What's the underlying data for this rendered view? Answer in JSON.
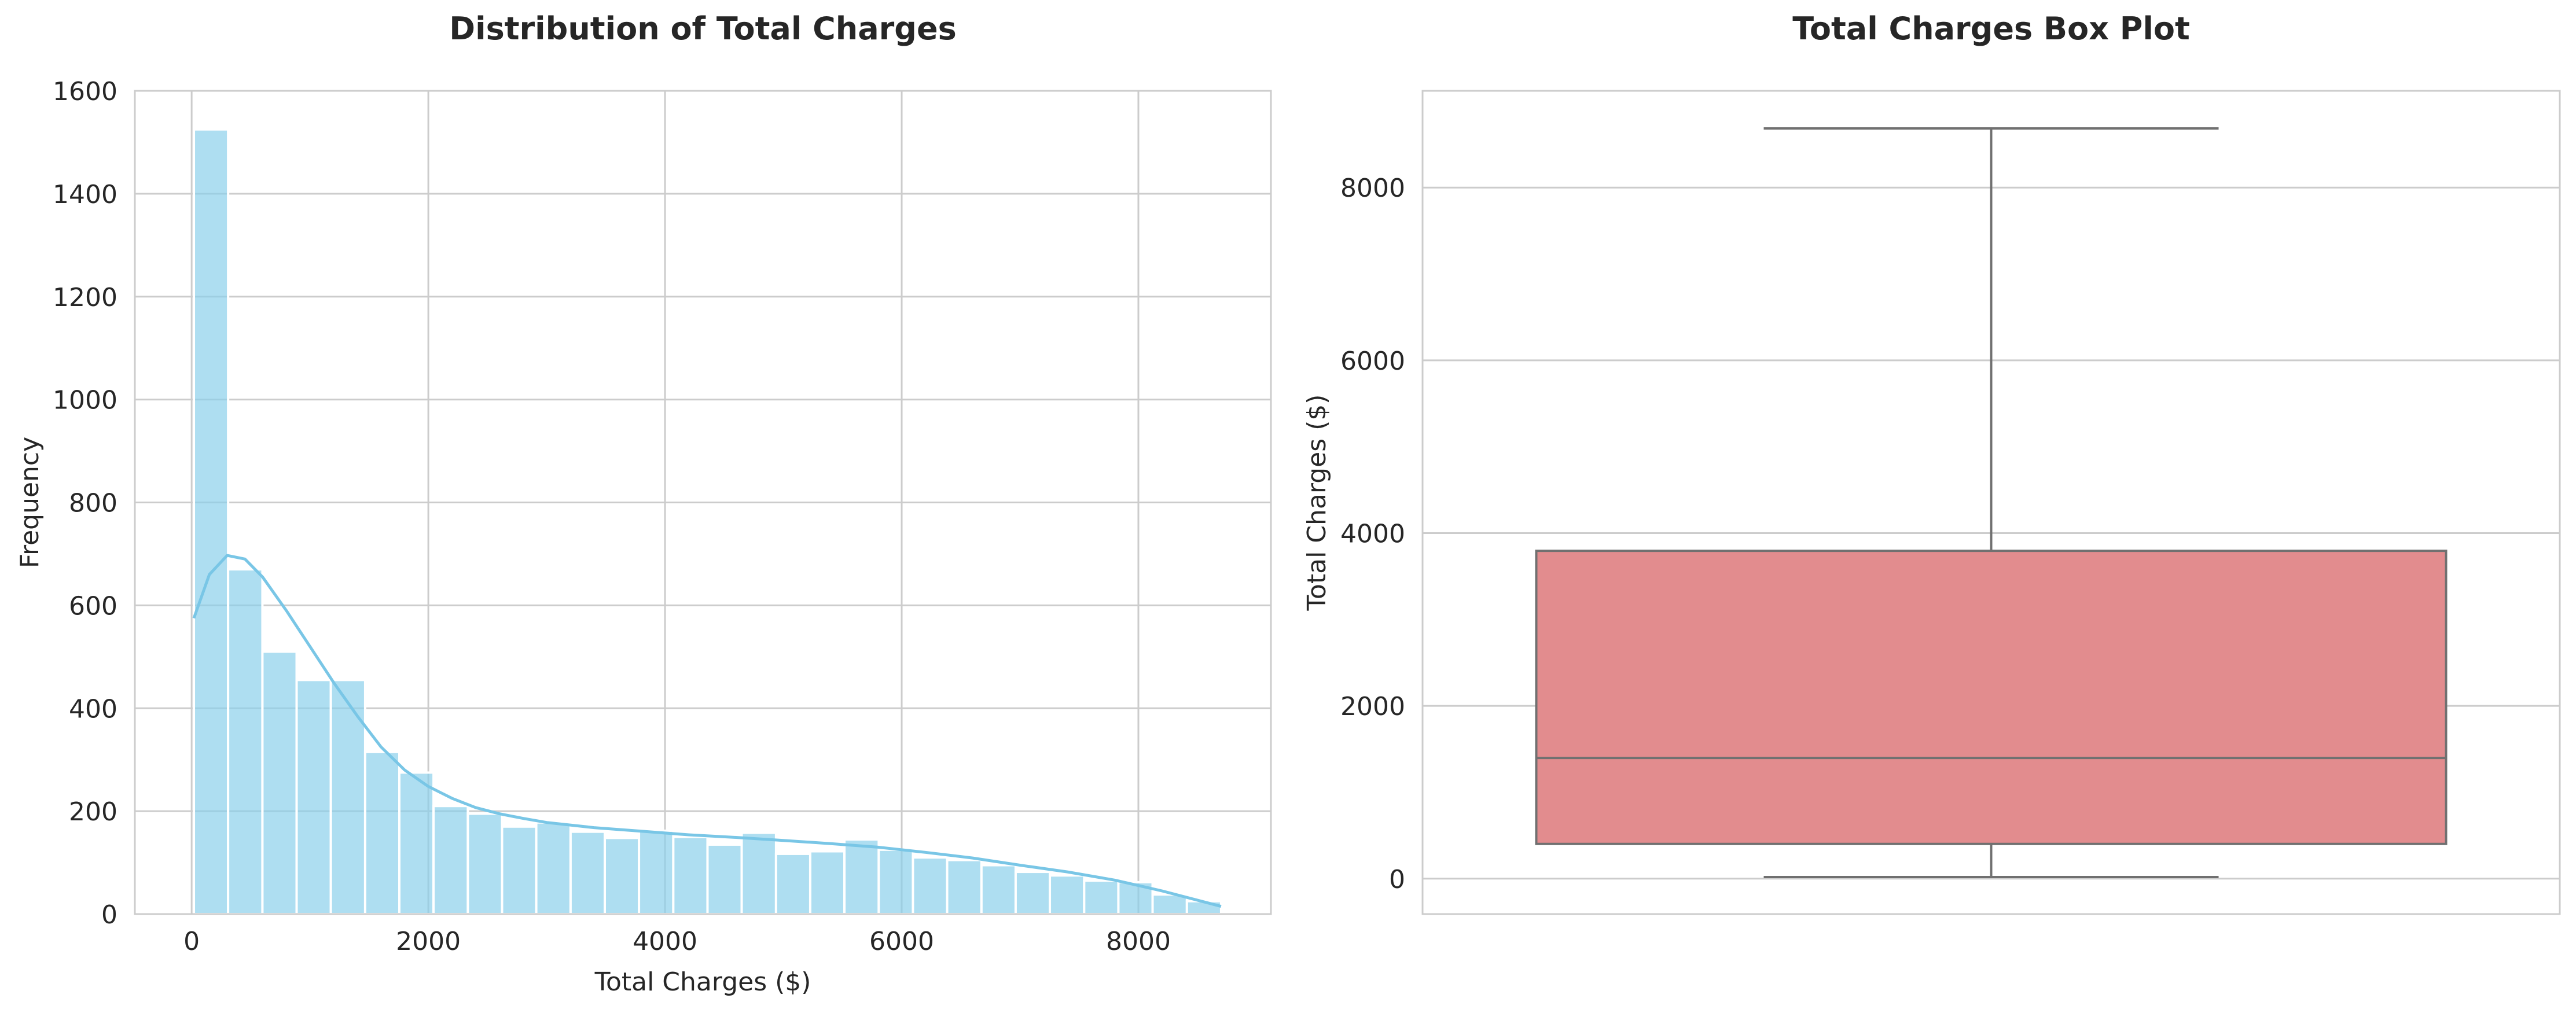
{
  "chart_data": [
    {
      "type": "bar",
      "subtype": "histogram-with-kde",
      "title": "Distribution of Total Charges",
      "xlabel": "Total Charges ($)",
      "ylabel": "Frequency",
      "xlim": [
        -480,
        9120
      ],
      "ylim": [
        0,
        1600
      ],
      "xticks": [
        0,
        2000,
        4000,
        6000,
        8000
      ],
      "yticks": [
        0,
        200,
        400,
        600,
        800,
        1000,
        1200,
        1400,
        1600
      ],
      "grid": true,
      "bar_color": "#87CEEB",
      "kde_color": "#79C6E6",
      "bins": [
        {
          "x0": 19,
          "x1": 308,
          "count": 1525
        },
        {
          "x0": 308,
          "x1": 598,
          "count": 670
        },
        {
          "x0": 598,
          "x1": 887,
          "count": 510
        },
        {
          "x0": 887,
          "x1": 1176,
          "count": 455
        },
        {
          "x0": 1176,
          "x1": 1466,
          "count": 455
        },
        {
          "x0": 1466,
          "x1": 1755,
          "count": 315
        },
        {
          "x0": 1755,
          "x1": 2044,
          "count": 275
        },
        {
          "x0": 2044,
          "x1": 2334,
          "count": 210
        },
        {
          "x0": 2334,
          "x1": 2623,
          "count": 195
        },
        {
          "x0": 2623,
          "x1": 2912,
          "count": 170
        },
        {
          "x0": 2912,
          "x1": 3202,
          "count": 178
        },
        {
          "x0": 3202,
          "x1": 3491,
          "count": 160
        },
        {
          "x0": 3491,
          "x1": 3780,
          "count": 148
        },
        {
          "x0": 3780,
          "x1": 4070,
          "count": 162
        },
        {
          "x0": 4070,
          "x1": 4359,
          "count": 150
        },
        {
          "x0": 4359,
          "x1": 4648,
          "count": 135
        },
        {
          "x0": 4648,
          "x1": 4938,
          "count": 158
        },
        {
          "x0": 4938,
          "x1": 5227,
          "count": 117
        },
        {
          "x0": 5227,
          "x1": 5516,
          "count": 122
        },
        {
          "x0": 5516,
          "x1": 5806,
          "count": 145
        },
        {
          "x0": 5806,
          "x1": 6095,
          "count": 125
        },
        {
          "x0": 6095,
          "x1": 6384,
          "count": 110
        },
        {
          "x0": 6384,
          "x1": 6674,
          "count": 105
        },
        {
          "x0": 6674,
          "x1": 6963,
          "count": 95
        },
        {
          "x0": 6963,
          "x1": 7252,
          "count": 82
        },
        {
          "x0": 7252,
          "x1": 7542,
          "count": 75
        },
        {
          "x0": 7542,
          "x1": 7831,
          "count": 65
        },
        {
          "x0": 7831,
          "x1": 8120,
          "count": 62
        },
        {
          "x0": 8120,
          "x1": 8410,
          "count": 38
        },
        {
          "x0": 8410,
          "x1": 8699,
          "count": 25
        }
      ],
      "kde": {
        "x": [
          19,
          150,
          300,
          450,
          600,
          800,
          1000,
          1200,
          1400,
          1600,
          1800,
          2000,
          2200,
          2400,
          2600,
          2800,
          3000,
          3400,
          3800,
          4200,
          4600,
          5000,
          5400,
          5800,
          6200,
          6600,
          7000,
          7400,
          7800,
          8200,
          8699
        ],
        "y": [
          575,
          660,
          697,
          690,
          655,
          590,
          520,
          450,
          385,
          325,
          280,
          248,
          225,
          207,
          195,
          186,
          178,
          168,
          161,
          154,
          149,
          143,
          137,
          130,
          120,
          109,
          95,
          82,
          66,
          45,
          15
        ]
      }
    },
    {
      "type": "box",
      "title": "Total Charges Box Plot",
      "ylabel": "Total Charges ($)",
      "xlabel": "",
      "ylim": [
        -410,
        9120
      ],
      "yticks": [
        0,
        2000,
        4000,
        6000,
        8000
      ],
      "grid": true,
      "box_color": "#E28C8E",
      "line_color": "#707070",
      "whisker_low": 19,
      "q1": 402,
      "median": 1397,
      "q3": 3795,
      "whisker_high": 8685
    }
  ]
}
